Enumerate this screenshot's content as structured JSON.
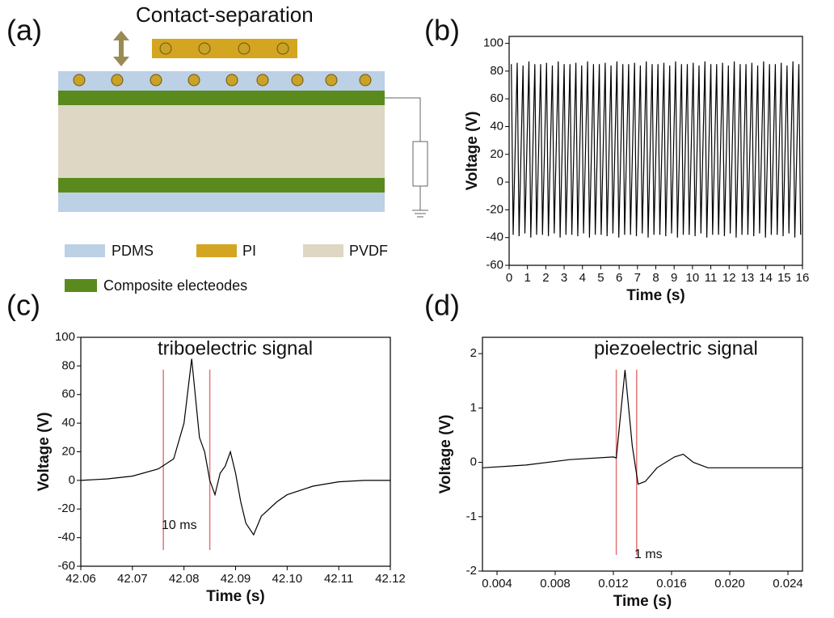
{
  "panel_labels": [
    "(a)",
    "(b)",
    "(c)",
    "(d)"
  ],
  "diagram": {
    "title": "Contact-separation",
    "legend": [
      "PDMS",
      "PI",
      "PVDF",
      "Composite electeodes"
    ]
  },
  "chart_data": [
    {
      "type": "line",
      "xlabel": "Time (s)",
      "ylabel": "Voltage (V)",
      "color": "#000000",
      "x": [
        0.12,
        0.22,
        0.44,
        0.54,
        0.76,
        0.86,
        1.08,
        1.18,
        1.4,
        1.5,
        1.72,
        1.82,
        2.04,
        2.14,
        2.36,
        2.46,
        2.68,
        2.78,
        3.0,
        3.1,
        3.32,
        3.42,
        3.64,
        3.74,
        3.96,
        4.06,
        4.28,
        4.38,
        4.6,
        4.7,
        4.92,
        5.02,
        5.24,
        5.34,
        5.56,
        5.66,
        5.88,
        5.98,
        6.2,
        6.3,
        6.52,
        6.62,
        6.84,
        6.94,
        7.16,
        7.26,
        7.48,
        7.58,
        7.8,
        7.9,
        8.12,
        8.22,
        8.44,
        8.54,
        8.76,
        8.86,
        9.08,
        9.18,
        9.4,
        9.5,
        9.72,
        9.82,
        10.04,
        10.14,
        10.36,
        10.46,
        10.68,
        10.78,
        11.0,
        11.1,
        11.32,
        11.42,
        11.64,
        11.74,
        11.96,
        12.06,
        12.28,
        12.38,
        12.6,
        12.7,
        12.92,
        13.02,
        13.24,
        13.34,
        13.56,
        13.66,
        13.88,
        13.98,
        14.2,
        14.3,
        14.52,
        14.62,
        14.84,
        14.94,
        15.16,
        15.26,
        15.48,
        15.58,
        15.8,
        15.9
      ],
      "values": [
        85,
        -38,
        86,
        -39,
        84,
        -37,
        87,
        -40,
        85,
        -38,
        85,
        -38,
        86,
        -39,
        84,
        -37,
        87,
        -40,
        85,
        -38,
        85,
        -38,
        86,
        -39,
        84,
        -37,
        87,
        -40,
        85,
        -38,
        85,
        -38,
        86,
        -39,
        84,
        -37,
        87,
        -40,
        85,
        -38,
        85,
        -38,
        86,
        -39,
        84,
        -37,
        87,
        -40,
        85,
        -38,
        85,
        -38,
        86,
        -39,
        84,
        -37,
        87,
        -40,
        85,
        -38,
        85,
        -38,
        86,
        -39,
        84,
        -37,
        87,
        -40,
        85,
        -38,
        85,
        -38,
        86,
        -39,
        84,
        -37,
        87,
        -40,
        85,
        -38,
        85,
        -38,
        86,
        -39,
        84,
        -37,
        87,
        -40,
        85,
        -38,
        85,
        -38,
        86,
        -39,
        84,
        -37,
        87,
        -40,
        85,
        -38
      ],
      "xlim": [
        0,
        16
      ],
      "xticks": [
        0,
        1,
        2,
        3,
        4,
        5,
        6,
        7,
        8,
        9,
        10,
        11,
        12,
        13,
        14,
        15,
        16
      ],
      "ylim": [
        -60,
        105
      ],
      "yticks": [
        -60,
        -40,
        -20,
        0,
        20,
        40,
        60,
        80,
        100
      ]
    },
    {
      "type": "line",
      "xlabel": "Time (s)",
      "ylabel": "Voltage (V)",
      "color": "#000000",
      "annotation": "triboelectric signal",
      "interval_label": "10 ms",
      "markers": [
        42.076,
        42.085
      ],
      "marker_color": "#e57373",
      "x": [
        42.06,
        42.065,
        42.07,
        42.075,
        42.078,
        42.08,
        42.0815,
        42.083,
        42.084,
        42.085,
        42.086,
        42.087,
        42.088,
        42.089,
        42.09,
        42.091,
        42.092,
        42.0935,
        42.095,
        42.098,
        42.1,
        42.105,
        42.11,
        42.115,
        42.12
      ],
      "values": [
        0,
        1,
        3,
        8,
        15,
        40,
        85,
        30,
        20,
        0,
        -10,
        5,
        10,
        20,
        5,
        -15,
        -30,
        -38,
        -25,
        -15,
        -10,
        -4,
        -1,
        0,
        0
      ],
      "xlim": [
        42.06,
        42.12
      ],
      "xticks": [
        42.06,
        42.07,
        42.08,
        42.09,
        {
          "value": 42.1,
          "label": "42.10"
        },
        42.11,
        42.12
      ],
      "ylim": [
        -60,
        100
      ],
      "yticks": [
        -60,
        -40,
        -20,
        0,
        20,
        40,
        60,
        80,
        100
      ]
    },
    {
      "type": "line",
      "xlabel": "Time (s)",
      "ylabel": "Voltage (V)",
      "color": "#000000",
      "annotation": "piezoelectric signal",
      "interval_label": "1 ms",
      "markers": [
        0.0122,
        0.0136
      ],
      "marker_color": "#e57373",
      "x": [
        0.003,
        0.006,
        0.009,
        0.012,
        0.0122,
        0.0128,
        0.0133,
        0.0137,
        0.0142,
        0.015,
        0.0162,
        0.0168,
        0.0175,
        0.0185,
        0.025
      ],
      "values": [
        -0.1,
        -0.05,
        0.05,
        0.1,
        0.08,
        1.7,
        0.3,
        -0.4,
        -0.35,
        -0.1,
        0.1,
        0.15,
        0,
        -0.1,
        -0.1
      ],
      "xlim": [
        0.003,
        0.025
      ],
      "xticks": [
        0.004,
        0.008,
        0.012,
        0.016,
        {
          "value": 0.02,
          "label": "0.020"
        },
        0.024
      ],
      "ylim": [
        -2,
        2.3
      ],
      "yticks": [
        -2,
        -1,
        0,
        1,
        2
      ]
    }
  ]
}
